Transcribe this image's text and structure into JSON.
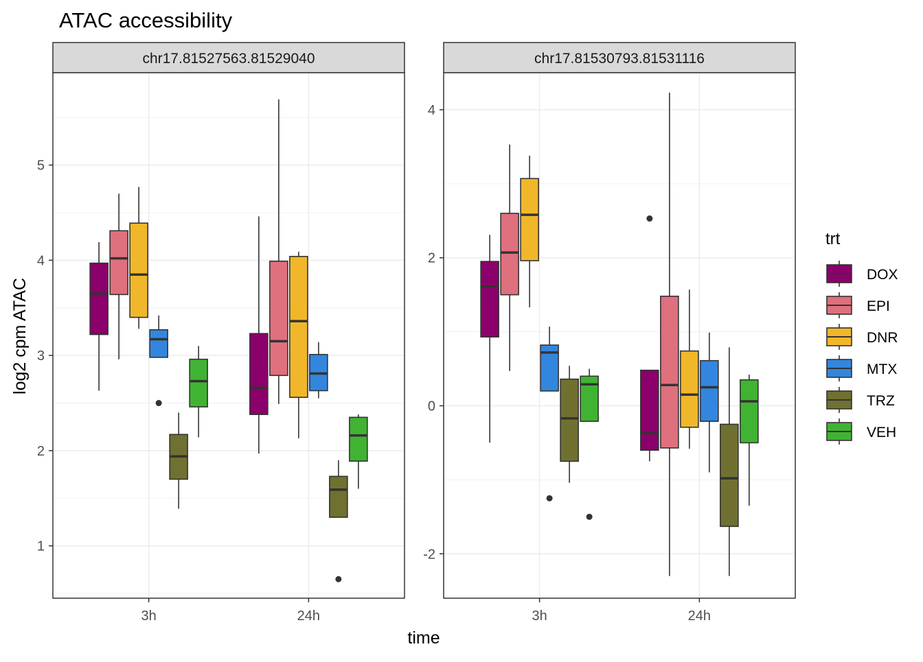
{
  "chart_data": {
    "type": "boxplot",
    "title": "ATAC accessibility",
    "xlabel": "time",
    "ylabel": "log2 cpm ATAC",
    "legend": {
      "title": "trt",
      "position": "right",
      "entries": [
        {
          "name": "DOX",
          "color": "#8B006B"
        },
        {
          "name": "EPI",
          "color": "#DF707E"
        },
        {
          "name": "DNR",
          "color": "#F1B72B"
        },
        {
          "name": "MTX",
          "color": "#3386DD"
        },
        {
          "name": "TRZ",
          "color": "#707031"
        },
        {
          "name": "VEH",
          "color": "#41B333"
        }
      ]
    },
    "categories": [
      "3h",
      "24h"
    ],
    "grid": true,
    "panels": [
      {
        "title": "chr17.81527563.81529040",
        "ylim": [
          0.45,
          5.97
        ],
        "yticks": [
          1,
          2,
          3,
          4,
          5
        ],
        "boxes": [
          {
            "time": "3h",
            "trt": "DOX",
            "min": 2.63,
            "q1": 3.22,
            "median": 3.65,
            "q3": 3.97,
            "max": 4.19,
            "outliers": []
          },
          {
            "time": "3h",
            "trt": "EPI",
            "min": 2.96,
            "q1": 3.64,
            "median": 4.02,
            "q3": 4.31,
            "max": 4.7,
            "outliers": []
          },
          {
            "time": "3h",
            "trt": "DNR",
            "min": 3.28,
            "q1": 3.4,
            "median": 3.85,
            "q3": 4.39,
            "max": 4.77,
            "outliers": []
          },
          {
            "time": "3h",
            "trt": "MTX",
            "min": 2.98,
            "q1": 2.98,
            "median": 3.17,
            "q3": 3.27,
            "max": 3.42,
            "outliers": [
              2.5
            ]
          },
          {
            "time": "3h",
            "trt": "TRZ",
            "min": 1.39,
            "q1": 1.7,
            "median": 1.94,
            "q3": 2.17,
            "max": 2.4,
            "outliers": []
          },
          {
            "time": "3h",
            "trt": "VEH",
            "min": 2.14,
            "q1": 2.46,
            "median": 2.73,
            "q3": 2.96,
            "max": 3.1,
            "outliers": []
          },
          {
            "time": "24h",
            "trt": "DOX",
            "min": 1.97,
            "q1": 2.38,
            "median": 2.66,
            "q3": 3.23,
            "max": 4.46,
            "outliers": []
          },
          {
            "time": "24h",
            "trt": "EPI",
            "min": 2.49,
            "q1": 2.79,
            "median": 3.15,
            "q3": 3.99,
            "max": 5.69,
            "outliers": []
          },
          {
            "time": "24h",
            "trt": "DNR",
            "min": 2.13,
            "q1": 2.56,
            "median": 3.36,
            "q3": 4.04,
            "max": 4.09,
            "outliers": []
          },
          {
            "time": "24h",
            "trt": "MTX",
            "min": 2.55,
            "q1": 2.63,
            "median": 2.81,
            "q3": 3.01,
            "max": 3.14,
            "outliers": []
          },
          {
            "time": "24h",
            "trt": "TRZ",
            "min": 1.3,
            "q1": 1.3,
            "median": 1.59,
            "q3": 1.73,
            "max": 1.9,
            "outliers": [
              0.65
            ]
          },
          {
            "time": "24h",
            "trt": "VEH",
            "min": 1.6,
            "q1": 1.89,
            "median": 2.16,
            "q3": 2.35,
            "max": 2.38,
            "outliers": []
          }
        ]
      },
      {
        "title": "chr17.81530793.81531116",
        "ylim": [
          -2.6,
          4.5
        ],
        "yticks": [
          -2,
          0,
          2,
          4
        ],
        "boxes": [
          {
            "time": "3h",
            "trt": "DOX",
            "min": -0.5,
            "q1": 0.93,
            "median": 1.61,
            "q3": 1.95,
            "max": 2.31,
            "outliers": []
          },
          {
            "time": "3h",
            "trt": "EPI",
            "min": 0.47,
            "q1": 1.5,
            "median": 2.07,
            "q3": 2.6,
            "max": 3.53,
            "outliers": []
          },
          {
            "time": "3h",
            "trt": "DNR",
            "min": 1.33,
            "q1": 1.96,
            "median": 2.58,
            "q3": 3.07,
            "max": 3.38,
            "outliers": []
          },
          {
            "time": "3h",
            "trt": "MTX",
            "min": 0.2,
            "q1": 0.2,
            "median": 0.72,
            "q3": 0.82,
            "max": 1.07,
            "outliers": [
              -1.25
            ]
          },
          {
            "time": "3h",
            "trt": "TRZ",
            "min": -1.04,
            "q1": -0.75,
            "median": -0.17,
            "q3": 0.36,
            "max": 0.54,
            "outliers": []
          },
          {
            "time": "3h",
            "trt": "VEH",
            "min": -0.21,
            "q1": -0.21,
            "median": 0.29,
            "q3": 0.4,
            "max": 0.5,
            "outliers": [
              -1.5
            ]
          },
          {
            "time": "24h",
            "trt": "DOX",
            "min": -0.75,
            "q1": -0.6,
            "median": -0.37,
            "q3": 0.48,
            "max": 0.48,
            "outliers": [
              2.53
            ]
          },
          {
            "time": "24h",
            "trt": "EPI",
            "min": -2.3,
            "q1": -0.57,
            "median": 0.28,
            "q3": 1.48,
            "max": 4.23,
            "outliers": []
          },
          {
            "time": "24h",
            "trt": "DNR",
            "min": -0.58,
            "q1": -0.29,
            "median": 0.15,
            "q3": 0.74,
            "max": 1.57,
            "outliers": []
          },
          {
            "time": "24h",
            "trt": "MTX",
            "min": -0.9,
            "q1": -0.21,
            "median": 0.25,
            "q3": 0.61,
            "max": 0.99,
            "outliers": []
          },
          {
            "time": "24h",
            "trt": "TRZ",
            "min": -2.3,
            "q1": -1.63,
            "median": -0.98,
            "q3": -0.25,
            "max": 0.79,
            "outliers": []
          },
          {
            "time": "24h",
            "trt": "VEH",
            "min": -1.35,
            "q1": -0.5,
            "median": 0.06,
            "q3": 0.35,
            "max": 0.42,
            "outliers": []
          }
        ]
      }
    ]
  }
}
